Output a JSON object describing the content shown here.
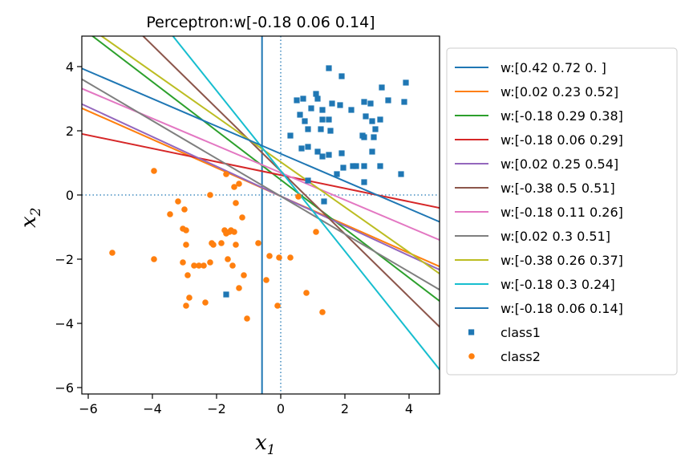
{
  "chart_data": {
    "type": "scatter",
    "title": "Perceptron:w[-0.18  0.06  0.14]",
    "xlabel": "x",
    "xlabel_sub": "1",
    "ylabel": "x",
    "ylabel_sub": "2",
    "xlim": [
      -6.2,
      4.95
    ],
    "ylim": [
      -6.2,
      4.95
    ],
    "xticks": [
      -6,
      -4,
      -2,
      0,
      2,
      4
    ],
    "yticks": [
      -6,
      -4,
      -2,
      0,
      2,
      4
    ],
    "tick_labels": [
      "−6",
      "−4",
      "−2",
      "0",
      "2",
      "4"
    ],
    "grid": false,
    "legend_position": "outside-right",
    "reference_lines": {
      "x": 0,
      "y": 0,
      "style": "dotted",
      "color": "#1f77b4"
    },
    "lines": [
      {
        "label": "w:[0.42 0.72 0.  ]",
        "w": [
          0.42,
          0.72,
          0.0
        ],
        "color": "#1f77b4"
      },
      {
        "label": "w:[0.02 0.23 0.52]",
        "w": [
          0.02,
          0.23,
          0.52
        ],
        "color": "#ff7f0e"
      },
      {
        "label": "w:[-0.18  0.29  0.38]",
        "w": [
          -0.18,
          0.29,
          0.38
        ],
        "color": "#2ca02c"
      },
      {
        "label": "w:[-0.18  0.06  0.29]",
        "w": [
          -0.18,
          0.06,
          0.29
        ],
        "color": "#d62728"
      },
      {
        "label": "w:[0.02 0.25 0.54]",
        "w": [
          0.02,
          0.25,
          0.54
        ],
        "color": "#9467bd"
      },
      {
        "label": "w:[-0.38  0.5   0.51]",
        "w": [
          -0.38,
          0.5,
          0.51
        ],
        "color": "#8c564b"
      },
      {
        "label": "w:[-0.18  0.11  0.26]",
        "w": [
          -0.18,
          0.11,
          0.26
        ],
        "color": "#e377c2"
      },
      {
        "label": "w:[0.02 0.3  0.51]",
        "w": [
          0.02,
          0.3,
          0.51
        ],
        "color": "#7f7f7f"
      },
      {
        "label": "w:[-0.38  0.26  0.37]",
        "w": [
          -0.38,
          0.26,
          0.37
        ],
        "color": "#bcbd22"
      },
      {
        "label": "w:[-0.18  0.3   0.24]",
        "w": [
          -0.18,
          0.3,
          0.24
        ],
        "color": "#17becf"
      },
      {
        "label": "w:[-0.18  0.06  0.14]",
        "w": [
          -0.18,
          0.06,
          0.14
        ],
        "color": "#1f77b4"
      }
    ],
    "series": [
      {
        "name": "class1",
        "marker": "square",
        "color": "#1f77b4",
        "points": [
          [
            1.5,
            3.95
          ],
          [
            1.9,
            3.7
          ],
          [
            3.15,
            3.35
          ],
          [
            3.9,
            3.5
          ],
          [
            0.5,
            2.95
          ],
          [
            0.7,
            3.0
          ],
          [
            1.1,
            3.15
          ],
          [
            1.15,
            3.0
          ],
          [
            1.6,
            2.85
          ],
          [
            1.85,
            2.8
          ],
          [
            0.95,
            2.7
          ],
          [
            1.3,
            2.65
          ],
          [
            2.2,
            2.65
          ],
          [
            2.6,
            2.9
          ],
          [
            2.8,
            2.85
          ],
          [
            3.35,
            2.95
          ],
          [
            3.85,
            2.9
          ],
          [
            0.6,
            2.5
          ],
          [
            1.3,
            2.35
          ],
          [
            2.65,
            2.45
          ],
          [
            0.75,
            2.3
          ],
          [
            1.5,
            2.35
          ],
          [
            2.85,
            2.3
          ],
          [
            3.1,
            2.35
          ],
          [
            0.85,
            2.05
          ],
          [
            1.25,
            2.05
          ],
          [
            1.55,
            2.0
          ],
          [
            2.95,
            2.05
          ],
          [
            0.3,
            1.85
          ],
          [
            2.55,
            1.85
          ],
          [
            2.6,
            1.8
          ],
          [
            2.9,
            1.8
          ],
          [
            0.65,
            1.45
          ],
          [
            0.85,
            1.5
          ],
          [
            1.15,
            1.35
          ],
          [
            1.3,
            1.2
          ],
          [
            1.5,
            1.25
          ],
          [
            1.9,
            1.3
          ],
          [
            2.85,
            1.35
          ],
          [
            1.75,
            0.65
          ],
          [
            1.95,
            0.85
          ],
          [
            2.25,
            0.9
          ],
          [
            2.35,
            0.9
          ],
          [
            2.6,
            0.9
          ],
          [
            3.1,
            0.9
          ],
          [
            3.75,
            0.65
          ],
          [
            0.85,
            0.45
          ],
          [
            2.6,
            0.4
          ],
          [
            1.35,
            -0.2
          ],
          [
            -1.7,
            -3.1
          ]
        ]
      },
      {
        "name": "class2",
        "marker": "circle",
        "color": "#ff7f0e",
        "points": [
          [
            -3.95,
            0.75
          ],
          [
            -1.7,
            0.65
          ],
          [
            -1.3,
            0.35
          ],
          [
            -1.45,
            0.25
          ],
          [
            -2.2,
            0.0
          ],
          [
            -3.2,
            -0.2
          ],
          [
            -1.4,
            -0.25
          ],
          [
            -3.0,
            -0.45
          ],
          [
            -3.45,
            -0.6
          ],
          [
            -1.2,
            -0.7
          ],
          [
            -3.05,
            -1.05
          ],
          [
            -2.95,
            -1.1
          ],
          [
            -1.75,
            -1.1
          ],
          [
            -1.55,
            -1.1
          ],
          [
            -1.6,
            -1.15
          ],
          [
            -1.45,
            -1.15
          ],
          [
            -1.7,
            -1.2
          ],
          [
            -2.15,
            -1.5
          ],
          [
            -2.1,
            -1.55
          ],
          [
            -1.85,
            -1.5
          ],
          [
            -2.95,
            -1.55
          ],
          [
            -1.4,
            -1.55
          ],
          [
            -0.7,
            -1.5
          ],
          [
            -5.25,
            -1.8
          ],
          [
            -3.95,
            -2.0
          ],
          [
            -3.05,
            -2.1
          ],
          [
            -2.2,
            -2.1
          ],
          [
            -2.7,
            -2.2
          ],
          [
            -2.55,
            -2.2
          ],
          [
            -2.4,
            -2.2
          ],
          [
            -1.65,
            -2.0
          ],
          [
            -1.5,
            -2.2
          ],
          [
            -0.35,
            -1.9
          ],
          [
            -0.05,
            -1.95
          ],
          [
            0.3,
            -1.95
          ],
          [
            -2.9,
            -2.5
          ],
          [
            -1.15,
            -2.5
          ],
          [
            -0.45,
            -2.65
          ],
          [
            -1.3,
            -2.9
          ],
          [
            -2.85,
            -3.2
          ],
          [
            -2.35,
            -3.35
          ],
          [
            -2.95,
            -3.45
          ],
          [
            0.8,
            -3.05
          ],
          [
            -0.1,
            -3.45
          ],
          [
            1.3,
            -3.65
          ],
          [
            -1.05,
            -3.85
          ],
          [
            0.55,
            -0.05
          ],
          [
            1.1,
            -1.15
          ]
        ]
      }
    ]
  }
}
